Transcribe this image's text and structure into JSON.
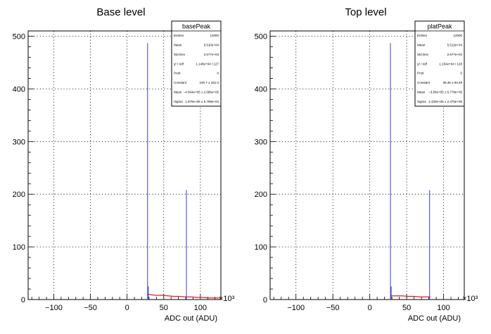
{
  "chart_data": [
    {
      "type": "histogram",
      "title": "Base level",
      "xlabel": "ADC out (ADU)",
      "x_exponent": "×10³",
      "xlim": [
        -135,
        128
      ],
      "ylim": [
        0,
        510
      ],
      "xticks": [
        -100,
        -50,
        0,
        50,
        100
      ],
      "yticks": [
        0,
        100,
        200,
        300,
        400,
        500
      ],
      "grid": true,
      "spikes": [
        {
          "x": 28,
          "count": 487
        },
        {
          "x": 29,
          "count": 25
        },
        {
          "x": 81,
          "count": 208
        }
      ],
      "fit_line": {
        "x": [
          28,
          33,
          40,
          48,
          56,
          64,
          72,
          80,
          88,
          96,
          104,
          112,
          120,
          128
        ],
        "y": [
          10,
          9,
          8,
          8,
          7,
          6,
          6,
          5,
          5,
          4,
          4,
          3,
          3,
          3
        ]
      },
      "stats_box": {
        "name": "basePeak",
        "rows": [
          {
            "label": "Entries",
            "value": "12000"
          },
          {
            "label": "Mean",
            "value": "5.510e+04"
          },
          {
            "label": "Std Dev",
            "value": "2.677e+04"
          },
          {
            "label": "χ² / ndf",
            "value": "1.148e+04 / 127"
          },
          {
            "label": "Prob",
            "value": "0"
          },
          {
            "label": "Constant",
            "value": "100.7 ± 151.0"
          },
          {
            "label": "Mean",
            "value": "−4.004e+05 ± 2.686e+05"
          },
          {
            "label": "Sigma",
            "value": "1.976e+05 ± 5.798e+04"
          }
        ]
      }
    },
    {
      "type": "histogram",
      "title": "Top level",
      "xlabel": "ADC out (ADU)",
      "x_exponent": "×10³",
      "xlim": [
        -135,
        128
      ],
      "ylim": [
        0,
        510
      ],
      "xticks": [
        -100,
        -50,
        0,
        50,
        100
      ],
      "yticks": [
        0,
        100,
        200,
        300,
        400,
        500
      ],
      "grid": true,
      "spikes": [
        {
          "x": 28,
          "count": 487
        },
        {
          "x": 29,
          "count": 25
        },
        {
          "x": 81,
          "count": 208
        }
      ],
      "fit_line": {
        "x": [
          28,
          36,
          44,
          52,
          60,
          68,
          76,
          82
        ],
        "y": [
          7,
          7,
          7,
          6,
          6,
          5,
          5,
          5
        ]
      },
      "stats_box": {
        "name": "platPeak",
        "rows": [
          {
            "label": "Entries",
            "value": "12000"
          },
          {
            "label": "Mean",
            "value": "5.512e+04"
          },
          {
            "label": "Std Dev",
            "value": "2.677e+04"
          },
          {
            "label": "χ² / ndf",
            "value": "1.154e+04 / 128"
          },
          {
            "label": "Prob",
            "value": "0"
          },
          {
            "label": "Constant",
            "value": "36.46 ± 93.29"
          },
          {
            "label": "Mean",
            "value": "−3.65e+05 ± 6.778e+05"
          },
          {
            "label": "Sigma",
            "value": "2.333e+05 ± 2.475e+05"
          }
        ]
      }
    }
  ],
  "colors": {
    "histogram": "#3b3bd6",
    "fit": "#d62020",
    "axis": "#000000",
    "grid": "#000000"
  }
}
